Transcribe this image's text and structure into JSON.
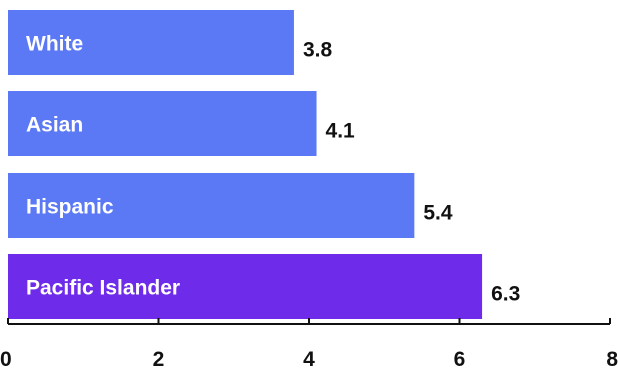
{
  "chart_data": {
    "type": "bar",
    "orientation": "horizontal",
    "categories": [
      "White",
      "Asian",
      "Hispanic",
      "Pacific Islander"
    ],
    "values": [
      3.8,
      4.1,
      5.4,
      6.3
    ],
    "value_labels": [
      "3.8",
      "4.1",
      "5.4",
      "6.3"
    ],
    "xlim": [
      0,
      8
    ],
    "xticks": [
      0,
      2,
      4,
      6,
      8
    ],
    "xtick_labels": [
      "0",
      "2",
      "4",
      "6",
      "8"
    ],
    "grid": false,
    "colors": {
      "default_bar": "#5B78F5",
      "highlight_bar": "#6F2BEA",
      "axis": "#111111"
    },
    "highlight_index": 3
  }
}
